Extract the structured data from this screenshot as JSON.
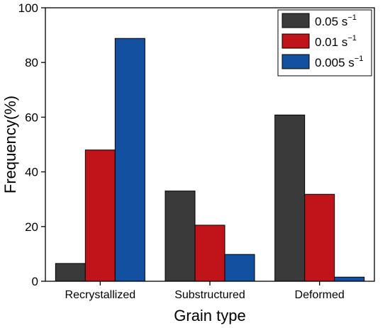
{
  "chart_data": {
    "type": "bar",
    "xlabel": "Grain type",
    "ylabel": "Frequency(%)",
    "ylim": [
      0,
      100
    ],
    "yticks": [
      0,
      20,
      40,
      60,
      80,
      100
    ],
    "grid": false,
    "legend_position": "top-right",
    "categories": [
      "Recrystallized",
      "Substructured",
      "Deformed"
    ],
    "series": [
      {
        "name": "0.05 s",
        "superscript": "−1",
        "color": "#3a3a3a",
        "values": [
          6.5,
          33.0,
          60.8
        ]
      },
      {
        "name": "0.01 s",
        "superscript": "−1",
        "color": "#c0131a",
        "values": [
          48.0,
          20.5,
          31.8
        ]
      },
      {
        "name": "0.005 s",
        "superscript": "−1",
        "color": "#1350a0",
        "values": [
          88.8,
          9.8,
          1.5
        ]
      }
    ]
  }
}
